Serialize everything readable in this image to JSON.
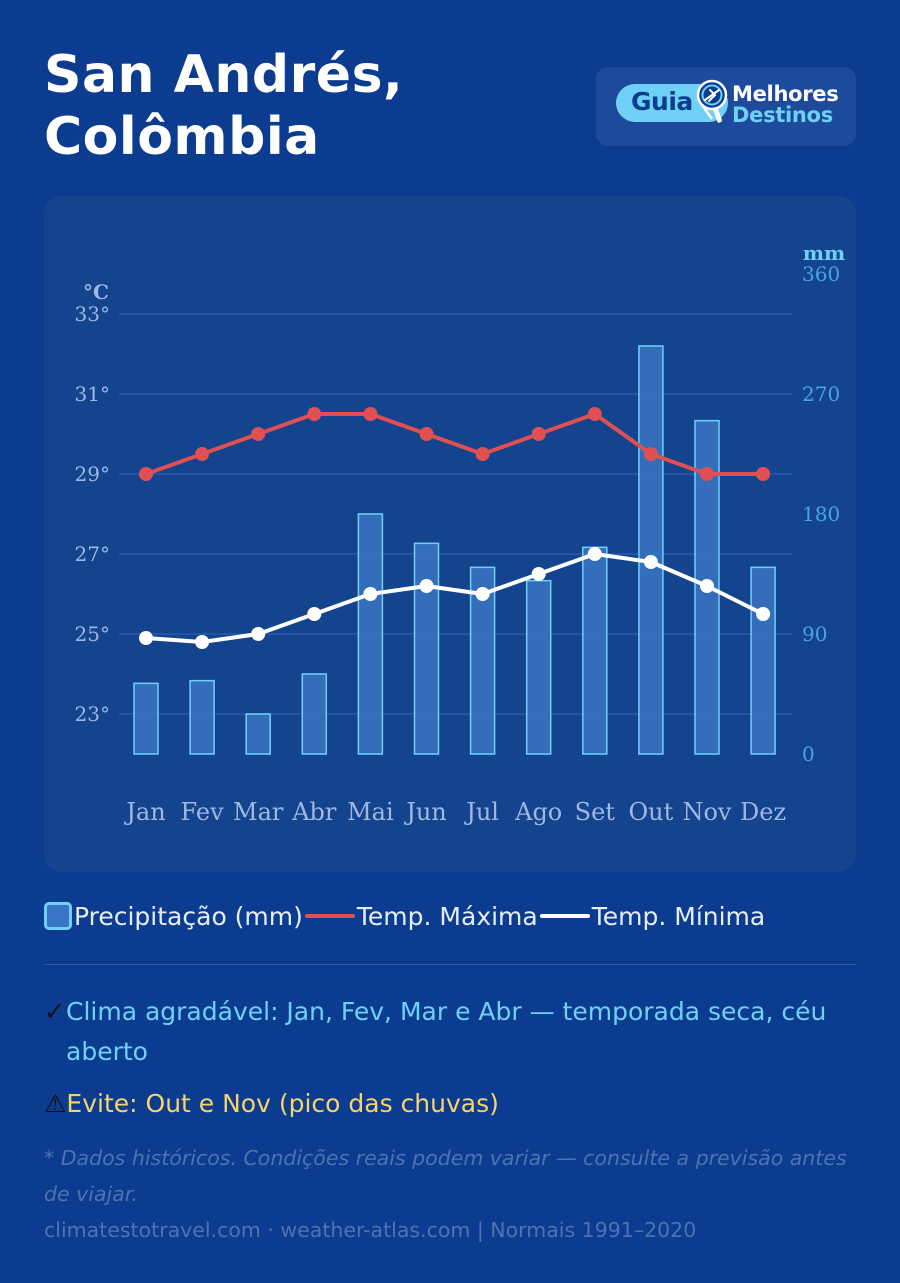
{
  "page": {
    "title_line1": "San Andrés,",
    "title_line2": "Colômbia"
  },
  "logo": {
    "text_guia": "Guia",
    "text_melhores": "Melhores",
    "text_destinos": "Destinos",
    "icon": "pin-plane-icon"
  },
  "chart_data": {
    "type": "bar+line",
    "categories": [
      "Jan",
      "Fev",
      "Mar",
      "Abr",
      "Mai",
      "Jun",
      "Jul",
      "Ago",
      "Set",
      "Out",
      "Nov",
      "Dez"
    ],
    "y_left": {
      "unit_label": "°C",
      "ticks": [
        "33°",
        "31°",
        "29°",
        "27°",
        "25°",
        "23°"
      ],
      "tick_values": [
        33,
        31,
        29,
        27,
        25,
        23
      ],
      "range": [
        22,
        33
      ]
    },
    "y_right": {
      "unit_label": "mm",
      "ticks": [
        "360",
        "270",
        "180",
        "90",
        "0"
      ],
      "tick_values": [
        360,
        270,
        180,
        90,
        0
      ],
      "range": [
        0,
        360
      ]
    },
    "grid": true,
    "series": [
      {
        "name": "Precipitação (mm)",
        "type": "bar",
        "axis": "right",
        "values": [
          53,
          55,
          30,
          60,
          180,
          158,
          140,
          130,
          155,
          306,
          250,
          140
        ]
      },
      {
        "name": "Temp. Máxima",
        "type": "line",
        "axis": "left",
        "values": [
          29,
          29.5,
          30,
          30.5,
          30.5,
          30,
          29.5,
          30,
          30.5,
          29.5,
          29,
          29
        ]
      },
      {
        "name": "Temp. Mínima",
        "type": "line",
        "axis": "left",
        "values": [
          24.9,
          24.8,
          25,
          25.5,
          26,
          26.2,
          26,
          26.5,
          27,
          26.8,
          26.2,
          25.5
        ]
      }
    ]
  },
  "colors": {
    "background": "#0c3c8f",
    "card": "#15448f",
    "bar_fill": "#3a76c2",
    "bar_stroke": "#6fd1f7",
    "max_line": "#e04f52",
    "min_line": "#ffffff",
    "axis_left": "#9fb7e2",
    "axis_right": "#4aa3e0",
    "accent": "#6fd1f7",
    "warning": "#f7d36b"
  },
  "legend": {
    "precip": "Precipitação (mm)",
    "max": "Temp. Máxima",
    "min": "Temp. Mínima"
  },
  "notes": {
    "good_icon": "✓",
    "good_text": "Clima agradável: Jan, Fev, Mar e Abr — temporada seca, céu aberto",
    "bad_icon": "⚠",
    "bad_text": "Evite: Out e Nov (pico das chuvas)"
  },
  "footer": {
    "disclaimer": "* Dados históricos. Condições reais podem variar — consulte a previsão antes de viajar.",
    "sources": "climatestotravel.com · weather-atlas.com  |  Normais 1991–2020"
  }
}
